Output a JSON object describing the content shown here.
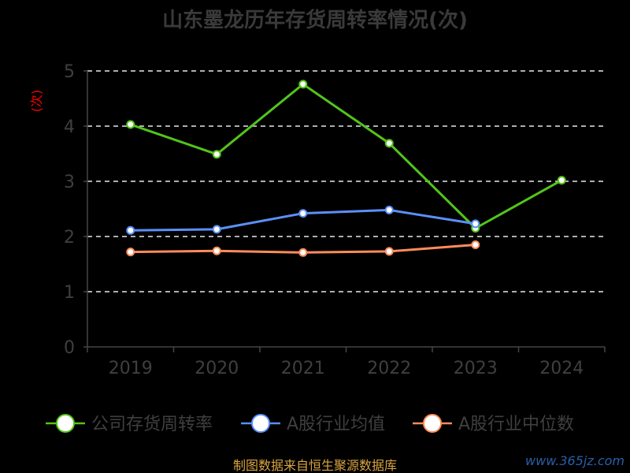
{
  "chart_data": {
    "type": "line",
    "title": "山东墨龙历年存货周转率情况(次)",
    "ylabel": "(次)",
    "xlabel": "",
    "categories": [
      "2019",
      "2020",
      "2021",
      "2022",
      "2023",
      "2024"
    ],
    "ylim": [
      0,
      5
    ],
    "yticks": [
      "0",
      "1",
      "2",
      "3",
      "4",
      "5"
    ],
    "grid": true,
    "legend_position": "bottom",
    "series": [
      {
        "name": "公司存货周转率",
        "color": "#52c41a",
        "values": [
          4.03,
          3.49,
          4.76,
          3.69,
          2.15,
          3.02
        ]
      },
      {
        "name": "A股行业均值",
        "color": "#5b8ff9",
        "values": [
          2.11,
          2.13,
          2.42,
          2.48,
          2.23,
          null
        ]
      },
      {
        "name": "A股行业中位数",
        "color": "#ff8c5a",
        "values": [
          1.72,
          1.74,
          1.71,
          1.73,
          1.85,
          null
        ]
      }
    ]
  },
  "footer": {
    "source": "制图数据来自恒生聚源数据库",
    "watermark": "www.365jz.com"
  }
}
